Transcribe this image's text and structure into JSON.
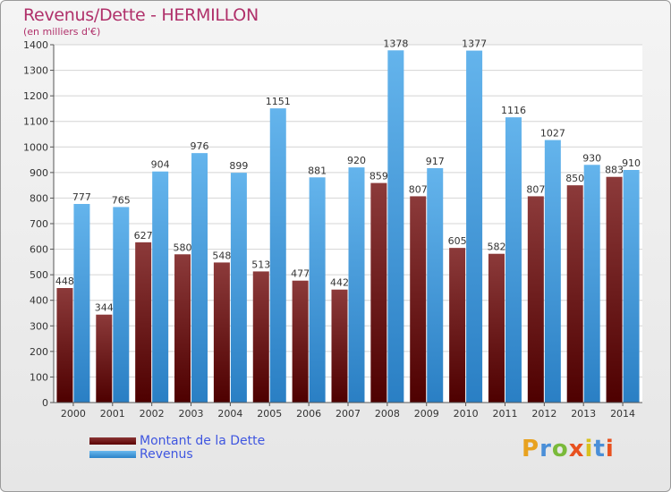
{
  "title": "Revenus/Dette - HERMILLON",
  "subtitle": "(en milliers d'€)",
  "colors": {
    "dette": "#7a1f1f",
    "revenus": "#4fa3e0",
    "title": "#b0306a"
  },
  "legend": {
    "dette": "Montant de la Dette",
    "revenus": "Revenus"
  },
  "logo": "Proxiti",
  "chart_data": {
    "type": "bar",
    "categories": [
      "2000",
      "2001",
      "2002",
      "2003",
      "2004",
      "2005",
      "2006",
      "2007",
      "2008",
      "2009",
      "2010",
      "2011",
      "2012",
      "2013",
      "2014"
    ],
    "series": [
      {
        "name": "Montant de la Dette",
        "values": [
          448,
          344,
          627,
          580,
          548,
          513,
          477,
          442,
          859,
          807,
          605,
          582,
          807,
          850,
          883
        ]
      },
      {
        "name": "Revenus",
        "values": [
          777,
          765,
          904,
          976,
          899,
          1151,
          881,
          920,
          1378,
          917,
          1377,
          1116,
          1027,
          930,
          910
        ]
      }
    ],
    "ylim": [
      0,
      1400
    ],
    "yticks": [
      0,
      100,
      200,
      300,
      400,
      500,
      600,
      700,
      800,
      900,
      1000,
      1100,
      1200,
      1300,
      1400
    ],
    "grid": true,
    "legend_position": "bottom-left"
  }
}
